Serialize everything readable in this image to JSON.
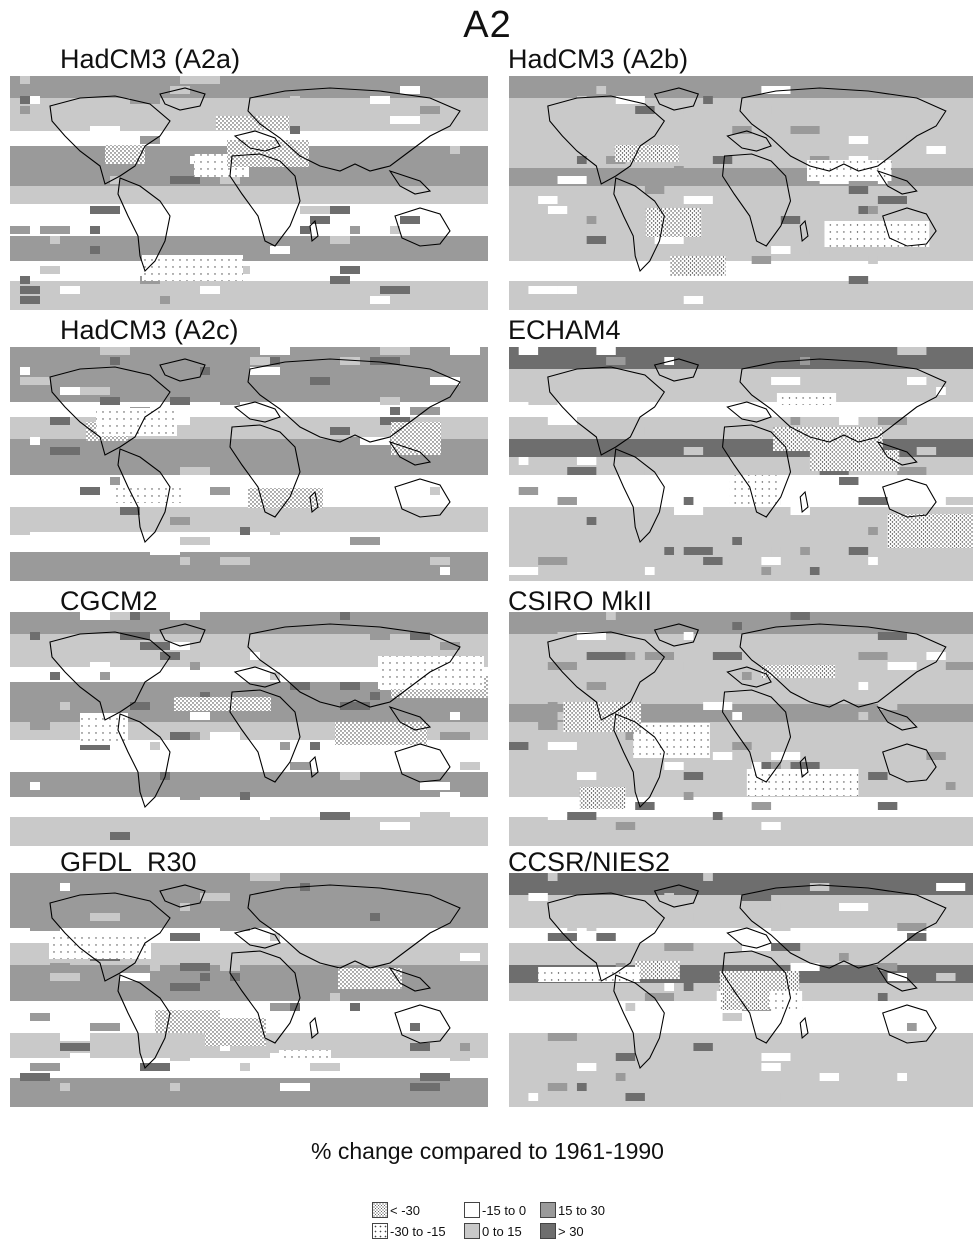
{
  "title": "A2",
  "panels": [
    {
      "label": "HadCM3 (A2a)"
    },
    {
      "label": "HadCM3 (A2b)"
    },
    {
      "label": "HadCM3 (A2c)"
    },
    {
      "label": "ECHAM4"
    },
    {
      "label": "CGCM2"
    },
    {
      "label": "CSIRO MkII"
    },
    {
      "label": "GFDL_R30"
    },
    {
      "label": "CCSR/NIES2"
    }
  ],
  "caption": "% change compared to 1961-1990",
  "legend": [
    {
      "label": "< -30",
      "swatch": "dense-dots"
    },
    {
      "label": "-30 to -15",
      "swatch": "sparse-dots"
    },
    {
      "label": "-15 to 0",
      "swatch": "white"
    },
    {
      "label": "0 to 15",
      "swatch": "light-gray"
    },
    {
      "label": "15 to 30",
      "swatch": "medium-gray"
    },
    {
      "label": "> 30",
      "swatch": "dark-gray"
    }
  ],
  "colors": {
    "white": "#ffffff",
    "light_gray": "#c9c9c9",
    "medium_gray": "#9a9a9a",
    "dark_gray": "#6e6e6e",
    "coastline": "#000000"
  }
}
